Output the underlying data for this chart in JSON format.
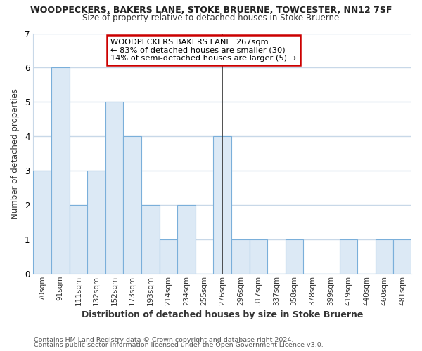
{
  "title": "WOODPECKERS, BAKERS LANE, STOKE BRUERNE, TOWCESTER, NN12 7SF",
  "subtitle": "Size of property relative to detached houses in Stoke Bruerne",
  "xlabel": "Distribution of detached houses by size in Stoke Bruerne",
  "ylabel": "Number of detached properties",
  "footer1": "Contains HM Land Registry data © Crown copyright and database right 2024.",
  "footer2": "Contains public sector information licensed under the Open Government Licence v3.0.",
  "bar_labels": [
    "70sqm",
    "91sqm",
    "111sqm",
    "132sqm",
    "152sqm",
    "173sqm",
    "193sqm",
    "214sqm",
    "234sqm",
    "255sqm",
    "276sqm",
    "296sqm",
    "317sqm",
    "337sqm",
    "358sqm",
    "378sqm",
    "399sqm",
    "419sqm",
    "440sqm",
    "460sqm",
    "481sqm"
  ],
  "bar_values": [
    3,
    6,
    2,
    3,
    5,
    4,
    2,
    1,
    2,
    0,
    4,
    1,
    1,
    0,
    1,
    0,
    0,
    1,
    0,
    1,
    1
  ],
  "highlight_bar_index": 10,
  "bar_facecolor": "#dce9f5",
  "bar_edgecolor": "#7aafda",
  "highlight_line_color": "#333333",
  "ylim": [
    0,
    7
  ],
  "yticks": [
    0,
    1,
    2,
    3,
    4,
    5,
    6,
    7
  ],
  "annotation_title": "WOODPECKERS BAKERS LANE: 267sqm",
  "annotation_line1": "← 83% of detached houses are smaller (30)",
  "annotation_line2": "14% of semi-detached houses are larger (5) →",
  "annotation_box_color": "#ffffff",
  "annotation_box_edge": "#cc0000",
  "plot_bg_color": "#ffffff",
  "fig_bg_color": "#ffffff",
  "grid_color": "#c8d8e8",
  "spine_color": "#c8d8e8"
}
